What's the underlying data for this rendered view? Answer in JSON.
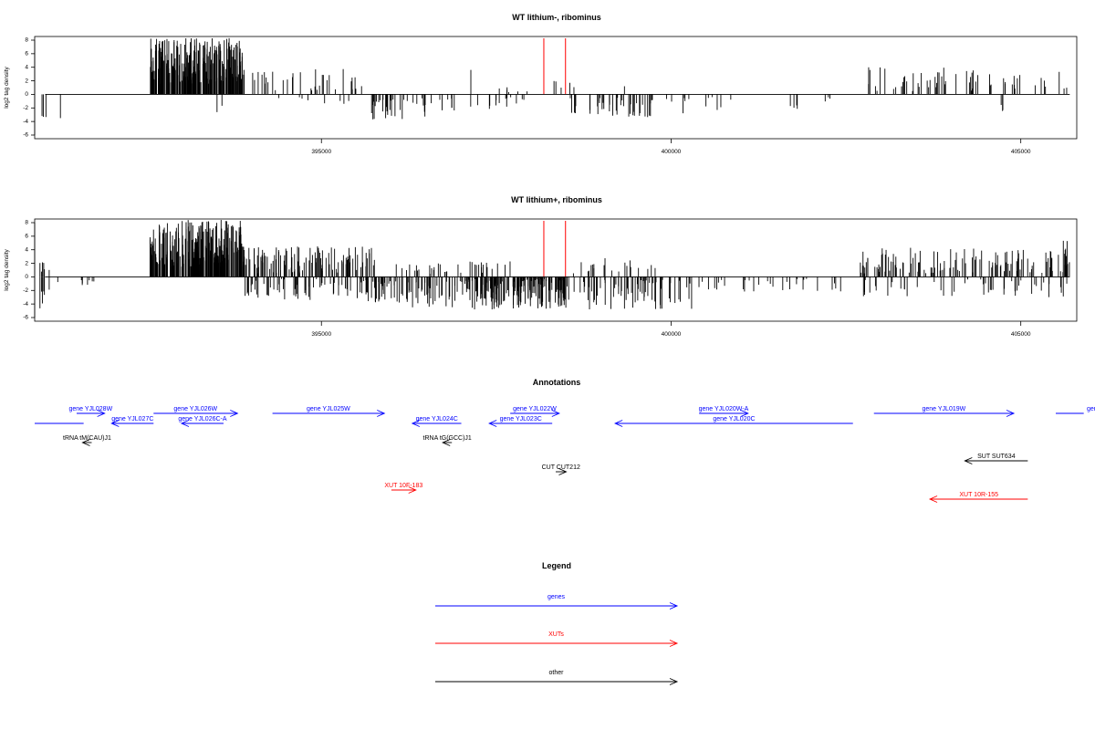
{
  "colors": {
    "genes": "#0000ff",
    "xuts": "#ff0000",
    "other": "#000000",
    "marker": "#ff0000",
    "density": "#000000"
  },
  "chart_data": [
    {
      "type": "bar",
      "title": "WT lithium-, ribominus",
      "ylabel": "log2 tag density",
      "xlim": [
        390900,
        405800
      ],
      "ylim": [
        -6,
        8
      ],
      "xticks": [
        395000,
        400000,
        405000
      ],
      "xtick_labels": [
        "395000",
        "400000",
        "405000"
      ],
      "yticks": [
        -6,
        -4,
        -2,
        0,
        2,
        4,
        6,
        8
      ],
      "ytick_labels": [
        "-6",
        "-4",
        "-2",
        "0",
        "2",
        "4",
        "6",
        "8"
      ],
      "markers_x": [
        398180,
        398490
      ],
      "density_seed": 7,
      "density_segments": [
        {
          "x0": 391000,
          "x1": 391100,
          "n": 3,
          "pmin": 0,
          "pmax": 0,
          "nmin": -3.5,
          "nmax": -1.5
        },
        {
          "x0": 391250,
          "x1": 391300,
          "n": 1,
          "pmin": 0,
          "pmax": 0,
          "nmin": -3.5,
          "nmax": -3.5
        },
        {
          "x0": 392550,
          "x1": 393900,
          "n": 250,
          "pmin": 1.5,
          "pmax": 8.3,
          "nmin": 0,
          "nmax": 0
        },
        {
          "x0": 393500,
          "x1": 393600,
          "n": 2,
          "pmin": 0,
          "pmax": 0,
          "nmin": -2.8,
          "nmax": -1
        },
        {
          "x0": 394000,
          "x1": 395600,
          "n": 34,
          "pmin": 0.5,
          "pmax": 3.8,
          "nmin": 0,
          "nmax": 0
        },
        {
          "x0": 394300,
          "x1": 395400,
          "n": 8,
          "pmin": 0,
          "pmax": 0,
          "nmin": -1.5,
          "nmax": -0.4
        },
        {
          "x0": 395700,
          "x1": 396900,
          "n": 40,
          "pmin": 0,
          "pmax": 0,
          "nmin": -3.8,
          "nmax": -0.5
        },
        {
          "x0": 397100,
          "x1": 397300,
          "n": 1,
          "pmin": 3.6,
          "pmax": 3.6,
          "nmin": 0,
          "nmax": 0
        },
        {
          "x0": 397100,
          "x1": 397900,
          "n": 14,
          "pmin": 0,
          "pmax": 0,
          "nmin": -2.2,
          "nmax": -0.4
        },
        {
          "x0": 397400,
          "x1": 397950,
          "n": 6,
          "pmin": 0.3,
          "pmax": 1.2,
          "nmin": 0,
          "nmax": 0
        },
        {
          "x0": 398300,
          "x1": 398700,
          "n": 5,
          "pmin": 0.8,
          "pmax": 2.8,
          "nmin": 0,
          "nmax": 0
        },
        {
          "x0": 398550,
          "x1": 399800,
          "n": 42,
          "pmin": 0,
          "pmax": 0,
          "nmin": -3.5,
          "nmax": -0.5
        },
        {
          "x0": 399200,
          "x1": 399400,
          "n": 1,
          "pmin": 1.2,
          "pmax": 1.2,
          "nmin": 0,
          "nmax": 0
        },
        {
          "x0": 399900,
          "x1": 400900,
          "n": 12,
          "pmin": 0,
          "pmax": 0,
          "nmin": -2.8,
          "nmax": -0.4
        },
        {
          "x0": 401700,
          "x1": 402300,
          "n": 7,
          "pmin": 0,
          "pmax": 0,
          "nmin": -2.2,
          "nmax": -0.4
        },
        {
          "x0": 402800,
          "x1": 405700,
          "n": 60,
          "pmin": 0.5,
          "pmax": 4.0,
          "nmin": 0,
          "nmax": 0
        },
        {
          "x0": 404650,
          "x1": 404800,
          "n": 3,
          "pmin": 0,
          "pmax": 0,
          "nmin": -2.5,
          "nmax": -1.5
        }
      ]
    },
    {
      "type": "bar",
      "title": "WT lithium+, ribominus",
      "ylabel": "log2 tag density",
      "xlim": [
        390900,
        405800
      ],
      "ylim": [
        -6,
        8
      ],
      "xticks": [
        395000,
        400000,
        405000
      ],
      "xtick_labels": [
        "395000",
        "400000",
        "405000"
      ],
      "yticks": [
        -6,
        -4,
        -2,
        0,
        2,
        4,
        6,
        8
      ],
      "ytick_labels": [
        "-6",
        "-4",
        "-2",
        "0",
        "2",
        "4",
        "6",
        "8"
      ],
      "markers_x": [
        398180,
        398490
      ],
      "density_seed": 21,
      "density_segments": [
        {
          "x0": 390950,
          "x1": 391150,
          "n": 6,
          "pmin": 0.5,
          "pmax": 2.3,
          "nmin": -5.5,
          "nmax": -1.5
        },
        {
          "x0": 391200,
          "x1": 392000,
          "n": 8,
          "pmin": 0,
          "pmax": 0,
          "nmin": -1.5,
          "nmax": -0.4
        },
        {
          "x0": 392550,
          "x1": 393900,
          "n": 260,
          "pmin": 1.5,
          "pmax": 8.4,
          "nmin": 0,
          "nmax": 0
        },
        {
          "x0": 393900,
          "x1": 395800,
          "n": 110,
          "pmin": 0.5,
          "pmax": 4.5,
          "nmin": 0,
          "nmax": 0
        },
        {
          "x0": 393900,
          "x1": 395600,
          "n": 60,
          "pmin": 0,
          "pmax": 0,
          "nmin": -3.5,
          "nmax": -0.3
        },
        {
          "x0": 395600,
          "x1": 397100,
          "n": 80,
          "pmin": 0,
          "pmax": 0,
          "nmin": -4.5,
          "nmax": -0.4
        },
        {
          "x0": 396000,
          "x1": 397000,
          "n": 20,
          "pmin": 0.3,
          "pmax": 2.0,
          "nmin": 0,
          "nmax": 0
        },
        {
          "x0": 397100,
          "x1": 398500,
          "n": 170,
          "pmin": 0,
          "pmax": 0,
          "nmin": -4.8,
          "nmax": -0.3
        },
        {
          "x0": 397100,
          "x1": 397700,
          "n": 15,
          "pmin": 0.3,
          "pmax": 2.5,
          "nmin": 0,
          "nmax": 0
        },
        {
          "x0": 398500,
          "x1": 400300,
          "n": 70,
          "pmin": 0,
          "pmax": 0,
          "nmin": -4.8,
          "nmax": -0.3
        },
        {
          "x0": 398500,
          "x1": 399800,
          "n": 20,
          "pmin": 0.3,
          "pmax": 2.8,
          "nmin": 0,
          "nmax": 0
        },
        {
          "x0": 400300,
          "x1": 402500,
          "n": 30,
          "pmin": 0,
          "pmax": 0,
          "nmin": -2.2,
          "nmax": -0.3
        },
        {
          "x0": 402700,
          "x1": 405700,
          "n": 130,
          "pmin": 0.5,
          "pmax": 4.3,
          "nmin": 0,
          "nmax": 0
        },
        {
          "x0": 402700,
          "x1": 405700,
          "n": 50,
          "pmin": 0,
          "pmax": 0,
          "nmin": -3.0,
          "nmax": -0.3
        },
        {
          "x0": 405600,
          "x1": 405750,
          "n": 3,
          "pmin": 3.5,
          "pmax": 5.8,
          "nmin": 0,
          "nmax": 0
        }
      ]
    }
  ],
  "annotations": {
    "title": "Annotations",
    "xlim": [
      390900,
      405800
    ],
    "features": [
      {
        "label": "",
        "kind": "genes",
        "x0": 390900,
        "x1": 391600,
        "dir": "none",
        "row": 1
      },
      {
        "label": "gene YJL028W",
        "kind": "genes",
        "x0": 391500,
        "x1": 391900,
        "dir": "right",
        "row": 0
      },
      {
        "label": "gene YJL027C",
        "kind": "genes",
        "x0": 392000,
        "x1": 392600,
        "dir": "left",
        "row": 1
      },
      {
        "label": "gene YJL026W",
        "kind": "genes",
        "x0": 392600,
        "x1": 393800,
        "dir": "right",
        "row": 0
      },
      {
        "label": "gene YJL026C-A",
        "kind": "genes",
        "x0": 393000,
        "x1": 393600,
        "dir": "left",
        "row": 1
      },
      {
        "label": "gene YJL025W",
        "kind": "genes",
        "x0": 394300,
        "x1": 395900,
        "dir": "right",
        "row": 0
      },
      {
        "label": "gene YJL024C",
        "kind": "genes",
        "x0": 396300,
        "x1": 397000,
        "dir": "left",
        "row": 1
      },
      {
        "label": "gene YJL023C",
        "kind": "genes",
        "x0": 397400,
        "x1": 398300,
        "dir": "left",
        "row": 1
      },
      {
        "label": "gene YJL022W",
        "kind": "genes",
        "x0": 397700,
        "x1": 398400,
        "dir": "right",
        "row": 0
      },
      {
        "label": "gene YJL020W-A",
        "kind": "genes",
        "x0": 400400,
        "x1": 401100,
        "dir": "right",
        "row": 0
      },
      {
        "label": "gene YJL020C",
        "kind": "genes",
        "x0": 399200,
        "x1": 402600,
        "dir": "left",
        "row": 1
      },
      {
        "label": "gene YJL019W",
        "kind": "genes",
        "x0": 402900,
        "x1": 404900,
        "dir": "right",
        "row": 0
      },
      {
        "label": "gene YJ",
        "kind": "genes",
        "x0": 405500,
        "x1": 405900,
        "dir": "none",
        "row": 0
      },
      {
        "label": "tRNA tM(CAU)J1",
        "kind": "other",
        "x0": 391600,
        "x1": 391700,
        "dir": "left",
        "row": 2
      },
      {
        "label": "tRNA tG(GCC)J1",
        "kind": "other",
        "x0": 396750,
        "x1": 396850,
        "dir": "left",
        "row": 2
      },
      {
        "label": "SUT SUT634",
        "kind": "other",
        "x0": 404200,
        "x1": 405100,
        "dir": "left",
        "row": 3
      },
      {
        "label": "CUT CUT212",
        "kind": "other",
        "x0": 398350,
        "x1": 398500,
        "dir": "right",
        "row": 4
      },
      {
        "label": "XUT 10F-183",
        "kind": "xuts",
        "x0": 396000,
        "x1": 396350,
        "dir": "right",
        "row": 5
      },
      {
        "label": "XUT 10R-155",
        "kind": "xuts",
        "x0": 403700,
        "x1": 405100,
        "dir": "left",
        "row": 6
      }
    ]
  },
  "legend": {
    "title": "Legend",
    "entries": [
      {
        "label": "genes",
        "kind": "genes"
      },
      {
        "label": "XUTs",
        "kind": "xuts"
      },
      {
        "label": "other",
        "kind": "other"
      }
    ]
  }
}
